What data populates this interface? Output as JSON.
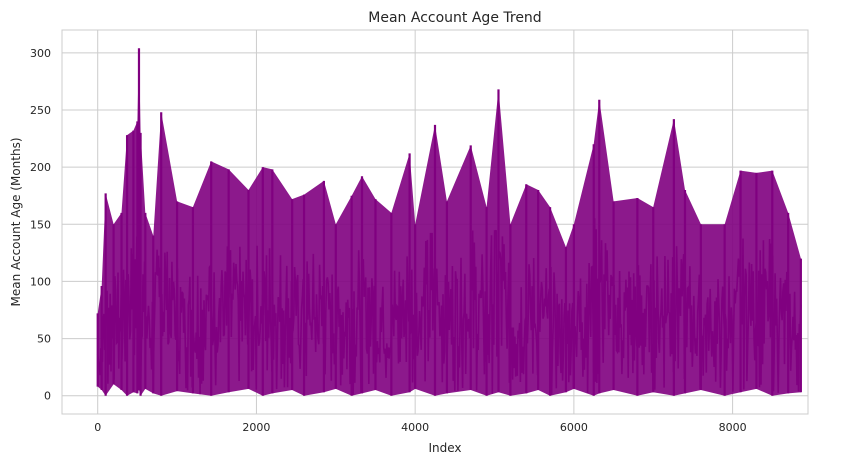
{
  "chart_data": {
    "type": "line",
    "title": "Mean Account Age Trend",
    "xlabel": "Index",
    "ylabel": "Mean Account Age (Months)",
    "xlim": [
      -450,
      8950
    ],
    "ylim": [
      -16,
      320
    ],
    "x_ticks": [
      0,
      2000,
      4000,
      6000,
      8000
    ],
    "y_ticks": [
      0,
      50,
      100,
      150,
      200,
      250,
      300
    ],
    "grid": true,
    "series": [
      {
        "color": "#800080",
        "x": [
          0,
          50,
          100,
          200,
          300,
          370,
          450,
          500,
          520,
          540,
          600,
          700,
          800,
          1000,
          1200,
          1430,
          1650,
          1900,
          2080,
          2200,
          2450,
          2600,
          2850,
          3000,
          3200,
          3330,
          3500,
          3700,
          3930,
          4000,
          4250,
          4400,
          4700,
          4900,
          5050,
          5200,
          5400,
          5550,
          5700,
          5900,
          6000,
          6250,
          6320,
          6500,
          6800,
          7000,
          7260,
          7400,
          7600,
          7900,
          8100,
          8300,
          8500,
          8700,
          8860
        ],
        "y": [
          72,
          96,
          177,
          150,
          160,
          228,
          232,
          240,
          304,
          230,
          160,
          140,
          248,
          170,
          165,
          205,
          198,
          180,
          200,
          198,
          172,
          176,
          188,
          150,
          175,
          192,
          172,
          160,
          212,
          150,
          237,
          170,
          219,
          165,
          268,
          150,
          185,
          180,
          165,
          130,
          150,
          220,
          259,
          170,
          173,
          165,
          242,
          180,
          150,
          150,
          197,
          195,
          197,
          160,
          120
        ],
        "y_min": [
          8,
          5,
          0,
          10,
          5,
          0,
          3,
          2,
          5,
          0,
          6,
          2,
          0,
          4,
          2,
          0,
          3,
          6,
          0,
          2,
          5,
          0,
          3,
          6,
          0,
          2,
          5,
          0,
          3,
          6,
          0,
          2,
          5,
          0,
          3,
          0,
          2,
          5,
          0,
          3,
          6,
          0,
          2,
          5,
          0,
          3,
          0,
          2,
          5,
          0,
          3,
          6,
          0,
          2,
          3
        ]
      }
    ]
  }
}
